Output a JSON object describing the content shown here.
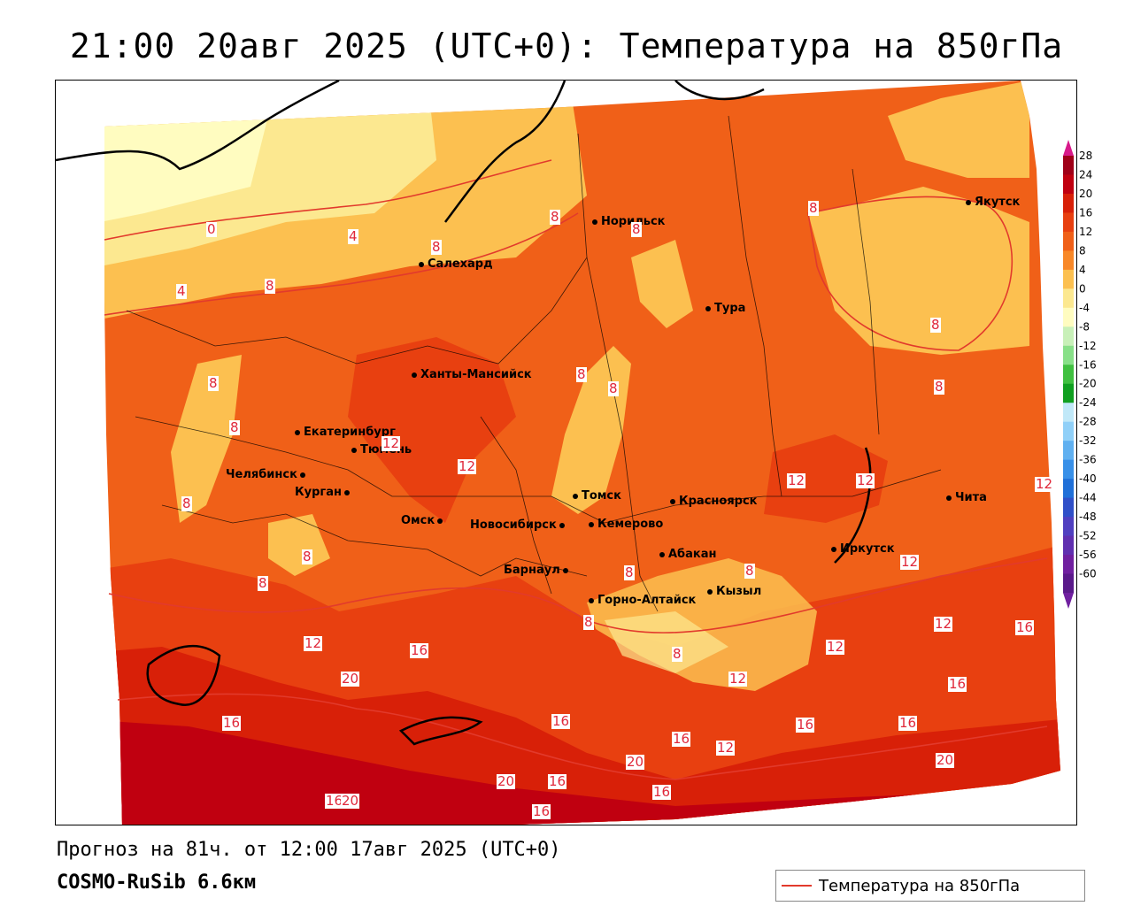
{
  "title": "21:00 20авг 2025 (UTC+0): Температура на 850гПа",
  "footer": {
    "forecast": "Прогноз на 81ч. от 12:00 17авг 2025 (UTC+0)",
    "model": "COSMO-RuSib 6.6км"
  },
  "legend": {
    "label": "Температура на 850гПа",
    "line_color": "#e23a2c"
  },
  "colorbar": {
    "ticks": [
      "28",
      "24",
      "20",
      "16",
      "12",
      "8",
      "4",
      "0",
      "-4",
      "-8",
      "-12",
      "-16",
      "-20",
      "-24",
      "-28",
      "-32",
      "-36",
      "-40",
      "-44",
      "-48",
      "-52",
      "-56",
      "-60"
    ],
    "colors": [
      "#a00018",
      "#c00010",
      "#d82008",
      "#e84010",
      "#f06018",
      "#f88828",
      "#fcc050",
      "#fce890",
      "#fffcc0",
      "#c8f0b8",
      "#88e088",
      "#40c040",
      "#10a020",
      "#c0e8f8",
      "#90d0f8",
      "#60b0f0",
      "#3890e8",
      "#2070d8",
      "#3050c8",
      "#5040c0",
      "#6030b0",
      "#7020a0",
      "#5a1a8a"
    ]
  },
  "cities": [
    {
      "name": "Норильск"
    },
    {
      "name": "Якутск"
    },
    {
      "name": "Салехард"
    },
    {
      "name": "Тура"
    },
    {
      "name": "Ханты-Мансийск"
    },
    {
      "name": "Екатеринбург"
    },
    {
      "name": "Тюмень"
    },
    {
      "name": "Челябинск"
    },
    {
      "name": "Курган"
    },
    {
      "name": "Омск"
    },
    {
      "name": "Новосибирск"
    },
    {
      "name": "Томск"
    },
    {
      "name": "Кемерово"
    },
    {
      "name": "Красноярск"
    },
    {
      "name": "Барнаул"
    },
    {
      "name": "Абакан"
    },
    {
      "name": "Горно-Алтайск"
    },
    {
      "name": "Кызыл"
    },
    {
      "name": "Иркутск"
    },
    {
      "name": "Чита"
    }
  ],
  "contour_labels": [
    "0",
    "4",
    "4",
    "8",
    "8",
    "8",
    "8",
    "8",
    "8",
    "8",
    "8",
    "8",
    "8",
    "8",
    "8",
    "8",
    "8",
    "8",
    "8",
    "12",
    "12",
    "12",
    "12",
    "12",
    "12",
    "12",
    "12",
    "12",
    "12",
    "16",
    "16",
    "16",
    "16",
    "16",
    "16",
    "16",
    "16",
    "16",
    "16",
    "20",
    "20",
    "20",
    "20",
    "20",
    "12",
    "8",
    "16",
    "8"
  ]
}
